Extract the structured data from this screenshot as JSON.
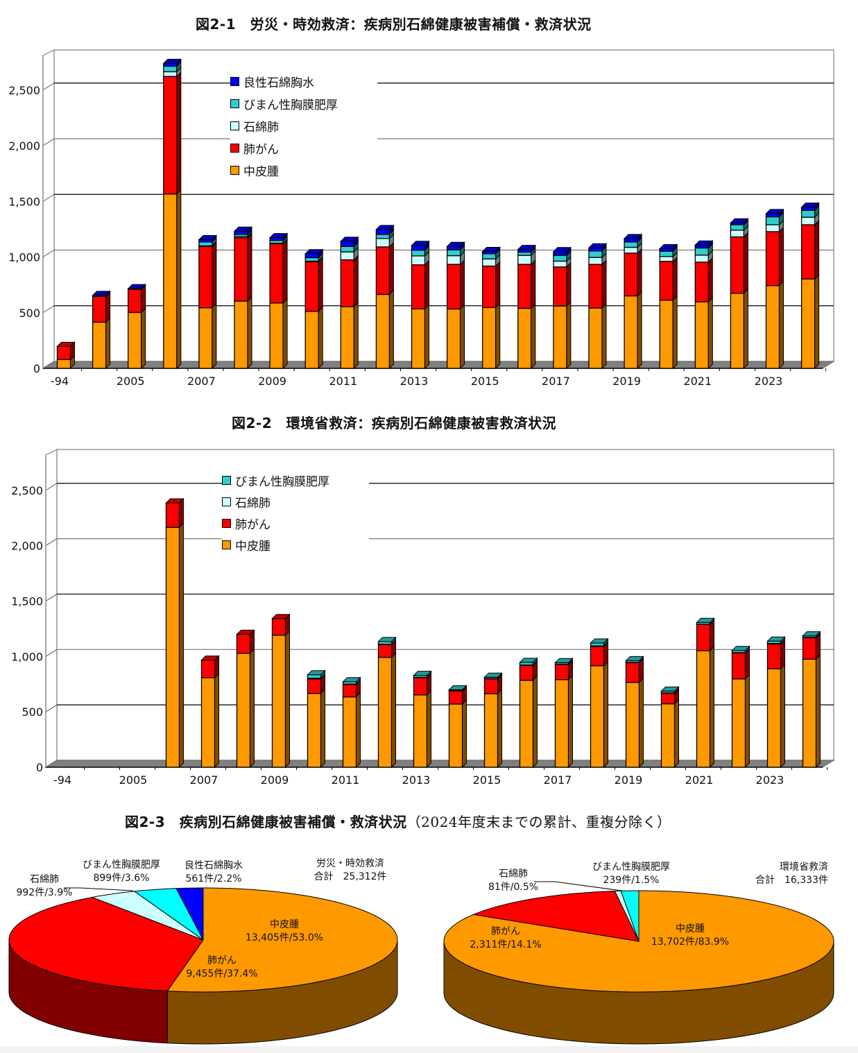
{
  "colors": {
    "mesothelioma": "#FF9900",
    "lung_cancer": "#FF0000",
    "asbestosis": "#CCFFFF",
    "pleural_thickening": "#33CCCC",
    "pleural_effusion": "#0000FF"
  },
  "chart_data": [
    {
      "type": "bar",
      "stacked": true,
      "title": "図2-1　労災・時効救済：疾病別石綿健康被害補償・救済状況",
      "xlabel": "",
      "ylabel": "",
      "ylim": [
        0,
        2750
      ],
      "y_ticks": [
        "0",
        "500",
        "1,000",
        "1,500",
        "2,000",
        "2,500"
      ],
      "y_tick_values": [
        0,
        500,
        1000,
        1500,
        2000,
        2500
      ],
      "grid": true,
      "legend_position": "top-center",
      "categories": [
        "-94",
        "",
        "2005",
        "",
        "2007",
        "",
        "2009",
        "",
        "2011",
        "",
        "2013",
        "",
        "2015",
        "",
        "2017",
        "",
        "2019",
        "",
        "2021",
        "",
        "2023",
        ""
      ],
      "legend_order": [
        "良性石綿胸水",
        "びまん性胸膜肥厚",
        "石綿肺",
        "肺がん",
        "中皮腫"
      ],
      "series": [
        {
          "name": "中皮腫",
          "color": "#FF9900",
          "values": [
            79,
            415,
            502,
            1566,
            544,
            604,
            587,
            512,
            554,
            664,
            535,
            533,
            546,
            539,
            560,
            542,
            651,
            612,
            598,
            674,
            743,
            803
          ]
        },
        {
          "name": "肺がん",
          "color": "#FF0000",
          "values": [
            118,
            232,
            208,
            1056,
            551,
            568,
            533,
            447,
            421,
            427,
            395,
            401,
            373,
            395,
            351,
            392,
            384,
            349,
            356,
            507,
            485,
            487
          ]
        },
        {
          "name": "石綿肺",
          "color": "#CCFFFF",
          "values": [
            0,
            0,
            0,
            42,
            5,
            11,
            3,
            3,
            71,
            75,
            80,
            78,
            64,
            81,
            52,
            62,
            52,
            43,
            63,
            60,
            62,
            67
          ]
        },
        {
          "name": "びまん性胸膜肥厚",
          "color": "#33CCCC",
          "values": [
            0,
            0,
            0,
            50,
            35,
            20,
            26,
            32,
            49,
            37,
            52,
            52,
            46,
            29,
            52,
            58,
            48,
            48,
            64,
            49,
            71,
            62
          ]
        },
        {
          "name": "良性石綿胸水",
          "color": "#0000FF",
          "values": [
            0,
            8,
            6,
            25,
            21,
            29,
            25,
            35,
            46,
            44,
            42,
            31,
            21,
            24,
            33,
            29,
            31,
            23,
            27,
            17,
            29,
            29
          ]
        }
      ]
    },
    {
      "type": "bar",
      "stacked": true,
      "title": "図2-2　環境省救済：疾病別石綿健康被害救済状況",
      "xlabel": "",
      "ylabel": "",
      "ylim": [
        0,
        2750
      ],
      "y_ticks": [
        "0",
        "500",
        "1,000",
        "1,500",
        "2,000",
        "2,500"
      ],
      "y_tick_values": [
        0,
        500,
        1000,
        1500,
        2000,
        2500
      ],
      "grid": true,
      "legend_position": "top-center",
      "categories": [
        "-94",
        "",
        "2005",
        "",
        "2007",
        "",
        "2009",
        "",
        "2011",
        "",
        "2013",
        "",
        "2015",
        "",
        "2017",
        "",
        "2019",
        "",
        "2021",
        "",
        "2023",
        ""
      ],
      "legend_order": [
        "びまん性胸膜肥厚",
        "石綿肺",
        "肺がん",
        "中皮腫"
      ],
      "series": [
        {
          "name": "中皮腫",
          "color": "#FF9900",
          "values": [
            0,
            0,
            0,
            2165,
            808,
            1029,
            1192,
            666,
            635,
            992,
            653,
            570,
            664,
            785,
            791,
            916,
            766,
            572,
            1052,
            797,
            889,
            975
          ]
        },
        {
          "name": "肺がん",
          "color": "#FF0000",
          "values": [
            0,
            0,
            0,
            221,
            159,
            171,
            150,
            131,
            112,
            114,
            155,
            119,
            133,
            134,
            136,
            174,
            178,
            96,
            236,
            234,
            224,
            194
          ]
        },
        {
          "name": "石綿肺",
          "color": "#CCFFFF",
          "values": [
            0,
            0,
            0,
            0,
            0,
            0,
            0,
            6,
            3,
            4,
            3,
            2,
            3,
            4,
            3,
            5,
            3,
            3,
            3,
            3,
            4,
            3
          ]
        },
        {
          "name": "びまん性胸膜肥厚",
          "color": "#33CCCC",
          "values": [
            0,
            0,
            0,
            0,
            0,
            0,
            0,
            32,
            22,
            24,
            18,
            8,
            12,
            23,
            14,
            26,
            15,
            16,
            16,
            20,
            21,
            14
          ]
        }
      ]
    },
    {
      "type": "pie",
      "title": "図2-3　疾病別石綿健康被害補償・救済状況",
      "subtitle": "（2024年度末までの累計、重複分除く）",
      "pies": [
        {
          "group": "労災・時効救済",
          "total_label": "合計　25,312件",
          "total": 25312,
          "slices": [
            {
              "name": "中皮腫",
              "value": 13405,
              "percent": 53.0,
              "value_label": "13,405件/53.0%",
              "color": "#FF9900"
            },
            {
              "name": "肺がん",
              "value": 9455,
              "percent": 37.4,
              "value_label": "9,455件/37.4%",
              "color": "#FF0000"
            },
            {
              "name": "石綿肺",
              "value": 992,
              "percent": 3.9,
              "value_label": "992件/3.9%",
              "color": "#CCFFFF"
            },
            {
              "name": "びまん性胸膜肥厚",
              "value": 899,
              "percent": 3.6,
              "value_label": "899件/3.6%",
              "color": "#00FFFF"
            },
            {
              "name": "良性石綿胸水",
              "value": 561,
              "percent": 2.2,
              "value_label": "561件/2.2%",
              "color": "#0000FF"
            }
          ]
        },
        {
          "group": "環境省救済",
          "total_label": "合計　16,333件",
          "total": 16333,
          "slices": [
            {
              "name": "中皮腫",
              "value": 13702,
              "percent": 83.9,
              "value_label": "13,702件/83.9%",
              "color": "#FF9900"
            },
            {
              "name": "肺がん",
              "value": 2311,
              "percent": 14.1,
              "value_label": "2,311件/14.1%",
              "color": "#FF0000"
            },
            {
              "name": "石綿肺",
              "value": 81,
              "percent": 0.5,
              "value_label": "81件/0.5%",
              "color": "#CCFFFF"
            },
            {
              "name": "びまん性胸膜肥厚",
              "value": 239,
              "percent": 1.5,
              "value_label": "239件/1.5%",
              "color": "#00FFFF"
            }
          ]
        }
      ]
    }
  ]
}
